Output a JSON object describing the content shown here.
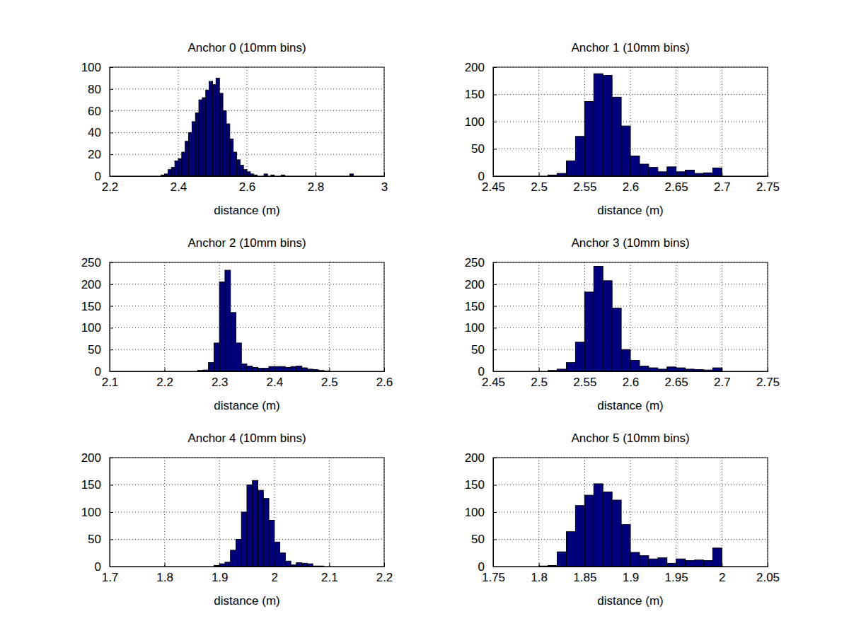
{
  "chart_data": [
    {
      "type": "histogram",
      "title": "Anchor 0 (10mm bins)",
      "x_label": "distance (m)",
      "color": "#00007f",
      "grid": true,
      "xlim": [
        2.2,
        3
      ],
      "xticks": [
        2.2,
        2.4,
        2.6,
        2.8,
        3
      ],
      "ylim": [
        0,
        100
      ],
      "yticks": [
        0,
        20,
        40,
        60,
        80,
        100
      ],
      "bins": [
        2.35,
        2.36,
        2.37,
        2.38,
        2.39,
        2.4,
        2.41,
        2.42,
        2.43,
        2.44,
        2.45,
        2.46,
        2.47,
        2.48,
        2.49,
        2.5,
        2.51,
        2.52,
        2.53,
        2.54,
        2.55,
        2.56,
        2.57,
        2.58,
        2.59,
        2.6,
        2.61,
        2.62,
        2.63,
        2.64,
        2.65,
        2.66,
        2.67,
        2.68,
        2.69,
        2.7,
        2.71,
        2.72,
        2.73,
        2.74,
        2.75,
        2.76,
        2.77,
        2.78,
        2.79,
        2.8,
        2.81,
        2.82,
        2.83,
        2.84,
        2.85,
        2.86,
        2.87,
        2.88,
        2.89,
        2.9,
        2.91
      ],
      "values": [
        1,
        2,
        6,
        8,
        14,
        16,
        22,
        32,
        40,
        50,
        58,
        70,
        72,
        79,
        87,
        84,
        90,
        76,
        60,
        48,
        34,
        22,
        15,
        10,
        6,
        4,
        2,
        1,
        0,
        0,
        2,
        0,
        1,
        0,
        0,
        1,
        0,
        0,
        0,
        0,
        0,
        0,
        0,
        0,
        0,
        0,
        0,
        0,
        0,
        0,
        0,
        0,
        0,
        0,
        0,
        2
      ]
    },
    {
      "type": "histogram",
      "title": "Anchor 1 (10mm bins)",
      "x_label": "distance (m)",
      "color": "#00007f",
      "grid": true,
      "xlim": [
        2.45,
        2.75
      ],
      "xticks": [
        2.45,
        2.5,
        2.55,
        2.6,
        2.65,
        2.7,
        2.75
      ],
      "ylim": [
        0,
        200
      ],
      "yticks": [
        0,
        50,
        100,
        150,
        200
      ],
      "bins": [
        2.51,
        2.52,
        2.53,
        2.54,
        2.55,
        2.56,
        2.57,
        2.58,
        2.59,
        2.6,
        2.61,
        2.62,
        2.63,
        2.64,
        2.65,
        2.66,
        2.67,
        2.68,
        2.69,
        2.7
      ],
      "values": [
        2,
        5,
        28,
        73,
        137,
        188,
        185,
        145,
        92,
        37,
        22,
        16,
        8,
        17,
        8,
        11,
        5,
        6,
        15
      ]
    },
    {
      "type": "histogram",
      "title": "Anchor 2 (10mm bins)",
      "x_label": "distance (m)",
      "color": "#00007f",
      "grid": true,
      "xlim": [
        2.1,
        2.6
      ],
      "xticks": [
        2.1,
        2.2,
        2.3,
        2.4,
        2.5,
        2.6
      ],
      "ylim": [
        0,
        250
      ],
      "yticks": [
        0,
        50,
        100,
        150,
        200,
        250
      ],
      "bins": [
        2.26,
        2.27,
        2.28,
        2.29,
        2.3,
        2.31,
        2.32,
        2.33,
        2.34,
        2.35,
        2.36,
        2.37,
        2.38,
        2.39,
        2.4,
        2.41,
        2.42,
        2.43,
        2.44,
        2.45,
        2.46,
        2.47,
        2.48,
        2.49,
        2.5
      ],
      "values": [
        2,
        3,
        20,
        65,
        205,
        232,
        135,
        65,
        17,
        12,
        9,
        7,
        7,
        11,
        11,
        11,
        9,
        11,
        12,
        8,
        5,
        4,
        2,
        1
      ]
    },
    {
      "type": "histogram",
      "title": "Anchor 3 (10mm bins)",
      "x_label": "distance (m)",
      "color": "#00007f",
      "grid": true,
      "xlim": [
        2.45,
        2.75
      ],
      "xticks": [
        2.45,
        2.5,
        2.55,
        2.6,
        2.65,
        2.7,
        2.75
      ],
      "ylim": [
        0,
        250
      ],
      "yticks": [
        0,
        50,
        100,
        150,
        200,
        250
      ],
      "bins": [
        2.51,
        2.52,
        2.53,
        2.54,
        2.55,
        2.56,
        2.57,
        2.58,
        2.59,
        2.6,
        2.61,
        2.62,
        2.63,
        2.64,
        2.65,
        2.66,
        2.67,
        2.68,
        2.69,
        2.7
      ],
      "values": [
        2,
        5,
        20,
        67,
        182,
        241,
        208,
        145,
        50,
        25,
        12,
        8,
        5,
        10,
        8,
        5,
        4,
        3,
        8
      ]
    },
    {
      "type": "histogram",
      "title": "Anchor 4 (10mm bins)",
      "x_label": "distance (m)",
      "color": "#00007f",
      "grid": true,
      "xlim": [
        1.7,
        2.2
      ],
      "xticks": [
        1.7,
        1.8,
        1.9,
        2,
        2.1,
        2.2
      ],
      "ylim": [
        0,
        200
      ],
      "yticks": [
        0,
        50,
        100,
        150,
        200
      ],
      "bins": [
        1.89,
        1.9,
        1.91,
        1.92,
        1.93,
        1.94,
        1.95,
        1.96,
        1.97,
        1.98,
        1.99,
        2,
        2.01,
        2.02,
        2.03,
        2.04,
        2.05,
        2.06,
        2.07,
        2.08,
        2.09
      ],
      "values": [
        2,
        5,
        8,
        30,
        50,
        100,
        150,
        158,
        140,
        125,
        85,
        45,
        25,
        10,
        3,
        7,
        6,
        5,
        1,
        1
      ]
    },
    {
      "type": "histogram",
      "title": "Anchor 5 (10mm bins)",
      "x_label": "distance (m)",
      "color": "#00007f",
      "grid": true,
      "xlim": [
        1.75,
        2.05
      ],
      "xticks": [
        1.75,
        1.8,
        1.85,
        1.9,
        1.95,
        2,
        2.05
      ],
      "ylim": [
        0,
        200
      ],
      "yticks": [
        0,
        50,
        100,
        150,
        200
      ],
      "bins": [
        1.8,
        1.81,
        1.82,
        1.83,
        1.84,
        1.85,
        1.86,
        1.87,
        1.88,
        1.89,
        1.9,
        1.91,
        1.92,
        1.93,
        1.94,
        1.95,
        1.96,
        1.97,
        1.98,
        1.99,
        2
      ],
      "values": [
        1,
        2,
        27,
        64,
        112,
        131,
        152,
        137,
        122,
        77,
        26,
        20,
        14,
        16,
        6,
        14,
        11,
        12,
        11,
        34
      ]
    }
  ]
}
